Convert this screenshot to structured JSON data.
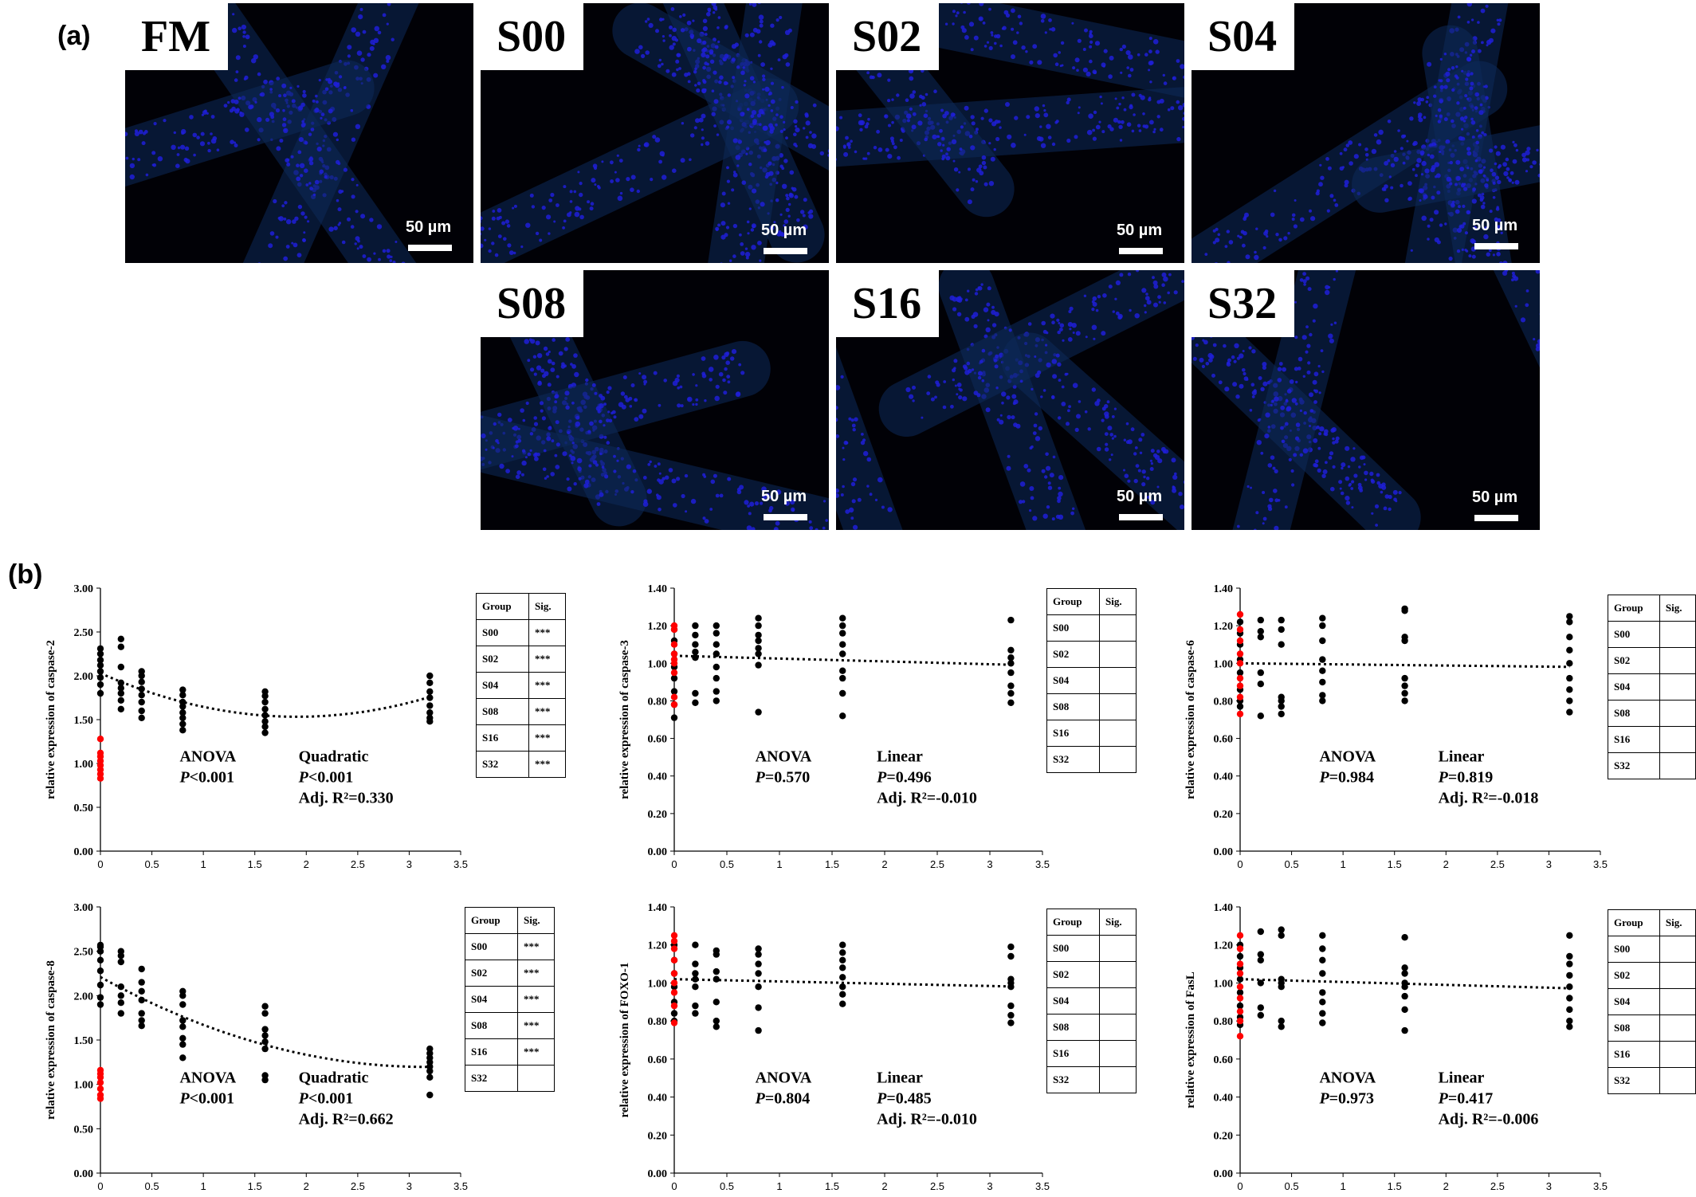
{
  "panel_a_label": "(a)",
  "panel_b_label": "(b)",
  "micrographs": [
    {
      "group": "FM",
      "scale": "50 µm"
    },
    {
      "group": "S00",
      "scale": "50 µm"
    },
    {
      "group": "S02",
      "scale": "50 µm"
    },
    {
      "group": "S04",
      "scale": "50 µm"
    },
    {
      "group": "S08",
      "scale": "50 µm"
    },
    {
      "group": "S16",
      "scale": "50 µm"
    },
    {
      "group": "S32",
      "scale": "50 µm"
    }
  ],
  "colors": {
    "nuclei": "#1f1fd8",
    "tissue_glow": "#0d2a5a",
    "background": "#010106",
    "fit": "#000000",
    "control": "#ff0000",
    "points": "#000000"
  },
  "chart_data": [
    {
      "type": "scatter",
      "ylabel": "relative expression of caspase-2",
      "xlim": [
        0,
        3.5
      ],
      "ylim": [
        0,
        3.0
      ],
      "xticks": [
        "0",
        "0.5",
        "1",
        "1.5",
        "2",
        "2.5",
        "3",
        "3.5"
      ],
      "yticks": [
        "0.00",
        "0.50",
        "1.00",
        "1.50",
        "2.00",
        "2.50",
        "3.00"
      ],
      "control": {
        "x": 0,
        "y": [
          0.83,
          0.88,
          0.93,
          0.98,
          1.03,
          1.08,
          1.12,
          1.28
        ]
      },
      "groups": [
        {
          "x": 0,
          "y": [
            1.8,
            1.9,
            1.98,
            2.05,
            2.12,
            2.18,
            2.25,
            2.31
          ]
        },
        {
          "x": 0.2,
          "y": [
            1.62,
            1.72,
            1.8,
            1.86,
            1.92,
            2.1,
            2.33,
            2.42
          ]
        },
        {
          "x": 0.4,
          "y": [
            1.52,
            1.6,
            1.7,
            1.78,
            1.85,
            1.93,
            2.0,
            2.05
          ]
        },
        {
          "x": 0.8,
          "y": [
            1.38,
            1.45,
            1.52,
            1.58,
            1.65,
            1.7,
            1.78,
            1.84
          ]
        },
        {
          "x": 1.6,
          "y": [
            1.35,
            1.42,
            1.48,
            1.55,
            1.62,
            1.7,
            1.77,
            1.82
          ]
        },
        {
          "x": 3.2,
          "y": [
            1.48,
            1.52,
            1.58,
            1.66,
            1.75,
            1.82,
            1.92,
            2.0
          ]
        }
      ],
      "fit": {
        "kind": "quadratic",
        "coeffs": [
          2.03,
          -0.52,
          0.136
        ]
      },
      "stats": {
        "anova_label": "ANOVA",
        "anova_p": "P<0.001",
        "model": "Quadratic",
        "model_p": "P<0.001",
        "adj_r2": "Adj. R²=0.330"
      },
      "table": {
        "headers": [
          "Group",
          "Sig."
        ],
        "rows": [
          [
            "S00",
            "***"
          ],
          [
            "S02",
            "***"
          ],
          [
            "S04",
            "***"
          ],
          [
            "S08",
            "***"
          ],
          [
            "S16",
            "***"
          ],
          [
            "S32",
            "***"
          ]
        ]
      }
    },
    {
      "type": "scatter",
      "ylabel": "relative expression of caspase-3",
      "xlim": [
        0,
        3.5
      ],
      "ylim": [
        0,
        1.4
      ],
      "xticks": [
        "0",
        "0.5",
        "1",
        "1.5",
        "2",
        "2.5",
        "3",
        "3.5"
      ],
      "yticks": [
        "0.00",
        "0.20",
        "0.40",
        "0.60",
        "0.80",
        "1.00",
        "1.20",
        "1.40"
      ],
      "control": {
        "x": 0,
        "y": [
          0.78,
          0.82,
          0.95,
          1.0,
          1.02,
          1.05,
          1.1,
          1.18,
          1.2
        ]
      },
      "groups": [
        {
          "x": 0,
          "y": [
            0.71,
            0.78,
            0.85,
            0.92,
            0.98,
            1.05,
            1.12,
            1.18
          ]
        },
        {
          "x": 0.2,
          "y": [
            0.79,
            0.84,
            1.03,
            1.06,
            1.1,
            1.15,
            1.2
          ]
        },
        {
          "x": 0.4,
          "y": [
            0.8,
            0.85,
            0.92,
            0.98,
            1.05,
            1.1,
            1.16,
            1.2
          ]
        },
        {
          "x": 0.8,
          "y": [
            0.74,
            0.99,
            1.05,
            1.08,
            1.12,
            1.15,
            1.2,
            1.24
          ]
        },
        {
          "x": 1.6,
          "y": [
            0.72,
            0.84,
            0.92,
            0.96,
            1.05,
            1.1,
            1.16,
            1.2,
            1.24
          ]
        },
        {
          "x": 3.2,
          "y": [
            0.79,
            0.84,
            0.88,
            0.95,
            1.0,
            1.03,
            1.07,
            1.23
          ]
        }
      ],
      "fit": {
        "kind": "linear",
        "coeffs": [
          1.04,
          -0.015
        ]
      },
      "stats": {
        "anova_label": "ANOVA",
        "anova_p": "P=0.570",
        "model": "Linear",
        "model_p": "P=0.496",
        "adj_r2": "Adj. R²=-0.010"
      },
      "table": {
        "headers": [
          "Group",
          "Sig."
        ],
        "rows": [
          [
            "S00",
            ""
          ],
          [
            "S02",
            ""
          ],
          [
            "S04",
            ""
          ],
          [
            "S08",
            ""
          ],
          [
            "S16",
            ""
          ],
          [
            "S32",
            ""
          ]
        ]
      }
    },
    {
      "type": "scatter",
      "ylabel": "relative expression of caspase-6",
      "xlim": [
        0,
        3.5
      ],
      "ylim": [
        0,
        1.4
      ],
      "xticks": [
        "0",
        "0.5",
        "1",
        "1.5",
        "2",
        "2.5",
        "3",
        "3.5"
      ],
      "yticks": [
        "0.00",
        "0.20",
        "0.40",
        "0.60",
        "0.80",
        "1.00",
        "1.20",
        "1.40"
      ],
      "control": {
        "x": 0,
        "y": [
          0.73,
          0.82,
          0.88,
          0.92,
          1.0,
          1.05,
          1.12,
          1.18,
          1.26
        ]
      },
      "groups": [
        {
          "x": 0,
          "y": [
            0.77,
            0.8,
            0.86,
            0.95,
            1.02,
            1.1,
            1.16,
            1.22
          ]
        },
        {
          "x": 0.2,
          "y": [
            0.72,
            0.89,
            0.95,
            1.14,
            1.17,
            1.23
          ]
        },
        {
          "x": 0.4,
          "y": [
            0.73,
            0.77,
            0.8,
            0.82,
            1.1,
            1.18,
            1.23
          ]
        },
        {
          "x": 0.8,
          "y": [
            0.8,
            0.83,
            0.9,
            0.96,
            1.02,
            1.12,
            1.2,
            1.24
          ]
        },
        {
          "x": 1.6,
          "y": [
            0.8,
            0.84,
            0.88,
            0.92,
            1.12,
            1.14,
            1.28,
            1.29
          ]
        },
        {
          "x": 3.2,
          "y": [
            0.74,
            0.8,
            0.86,
            0.92,
            1.0,
            1.07,
            1.14,
            1.22,
            1.25
          ]
        }
      ],
      "fit": {
        "kind": "linear",
        "coeffs": [
          1.0,
          -0.006
        ]
      },
      "stats": {
        "anova_label": "ANOVA",
        "anova_p": "P=0.984",
        "model": "Linear",
        "model_p": "P=0.819",
        "adj_r2": "Adj. R²=-0.018"
      },
      "table": {
        "headers": [
          "Group",
          "Sig."
        ],
        "rows": [
          [
            "S00",
            ""
          ],
          [
            "S02",
            ""
          ],
          [
            "S04",
            ""
          ],
          [
            "S08",
            ""
          ],
          [
            "S16",
            ""
          ],
          [
            "S32",
            ""
          ]
        ]
      }
    },
    {
      "type": "scatter",
      "ylabel": "relative expression of caspase-8",
      "xlim": [
        0,
        3.5
      ],
      "ylim": [
        0,
        3.0
      ],
      "xticks": [
        "0",
        "0.5",
        "1",
        "1.5",
        "2",
        "2.5",
        "3",
        "3.5"
      ],
      "yticks": [
        "0.00",
        "0.50",
        "1.00",
        "1.50",
        "2.00",
        "2.50",
        "3.00"
      ],
      "control": {
        "x": 0,
        "y": [
          0.84,
          0.88,
          0.95,
          1.02,
          1.08,
          1.12,
          1.16
        ]
      },
      "groups": [
        {
          "x": 0,
          "y": [
            1.9,
            1.98,
            2.12,
            2.28,
            2.4,
            2.5,
            2.55,
            2.57
          ]
        },
        {
          "x": 0.2,
          "y": [
            1.8,
            1.92,
            2.0,
            2.1,
            2.38,
            2.45,
            2.5
          ]
        },
        {
          "x": 0.4,
          "y": [
            1.66,
            1.72,
            1.8,
            1.95,
            2.05,
            2.15,
            2.3
          ]
        },
        {
          "x": 0.8,
          "y": [
            1.3,
            1.45,
            1.52,
            1.65,
            1.72,
            1.9,
            2.0,
            2.05
          ]
        },
        {
          "x": 1.6,
          "y": [
            1.05,
            1.1,
            1.4,
            1.48,
            1.55,
            1.62,
            1.8,
            1.88
          ]
        },
        {
          "x": 3.2,
          "y": [
            0.88,
            1.08,
            1.15,
            1.2,
            1.25,
            1.3,
            1.35,
            1.4
          ]
        }
      ],
      "fit": {
        "kind": "quadratic",
        "coeffs": [
          2.21,
          -0.64,
          0.101
        ]
      },
      "stats": {
        "anova_label": "ANOVA",
        "anova_p": "P<0.001",
        "model": "Quadratic",
        "model_p": "P<0.001",
        "adj_r2": "Adj. R²=0.662"
      },
      "table": {
        "headers": [
          "Group",
          "Sig."
        ],
        "rows": [
          [
            "S00",
            "***"
          ],
          [
            "S02",
            "***"
          ],
          [
            "S04",
            "***"
          ],
          [
            "S08",
            "***"
          ],
          [
            "S16",
            "***"
          ],
          [
            "S32",
            ""
          ]
        ]
      }
    },
    {
      "type": "scatter",
      "ylabel": "relative expression of FOXO-1",
      "xlim": [
        0,
        3.5
      ],
      "ylim": [
        0,
        1.4
      ],
      "xticks": [
        "0",
        "0.5",
        "1",
        "1.5",
        "2",
        "2.5",
        "3",
        "3.5"
      ],
      "yticks": [
        "0.00",
        "0.20",
        "0.40",
        "0.60",
        "0.80",
        "1.00",
        "1.20",
        "1.40"
      ],
      "control": {
        "x": 0,
        "y": [
          0.79,
          0.88,
          0.95,
          1.0,
          1.05,
          1.12,
          1.18,
          1.22,
          1.25
        ]
      },
      "groups": [
        {
          "x": 0,
          "y": [
            0.8,
            0.84,
            0.9,
            0.98,
            1.05,
            1.12,
            1.2
          ]
        },
        {
          "x": 0.2,
          "y": [
            0.84,
            0.88,
            0.98,
            1.02,
            1.05,
            1.1,
            1.2
          ]
        },
        {
          "x": 0.4,
          "y": [
            0.77,
            0.8,
            0.9,
            1.02,
            1.06,
            1.15,
            1.17
          ]
        },
        {
          "x": 0.8,
          "y": [
            0.75,
            0.87,
            0.98,
            1.05,
            1.1,
            1.15,
            1.18
          ]
        },
        {
          "x": 1.6,
          "y": [
            0.89,
            0.94,
            0.98,
            1.03,
            1.08,
            1.12,
            1.16,
            1.2
          ]
        },
        {
          "x": 3.2,
          "y": [
            0.79,
            0.83,
            0.88,
            0.98,
            1.0,
            1.02,
            1.14,
            1.19
          ]
        }
      ],
      "fit": {
        "kind": "linear",
        "coeffs": [
          1.02,
          -0.012
        ]
      },
      "stats": {
        "anova_label": "ANOVA",
        "anova_p": "P=0.804",
        "model": "Linear",
        "model_p": "P=0.485",
        "adj_r2": "Adj. R²=-0.010"
      },
      "table": {
        "headers": [
          "Group",
          "Sig."
        ],
        "rows": [
          [
            "S00",
            ""
          ],
          [
            "S02",
            ""
          ],
          [
            "S04",
            ""
          ],
          [
            "S08",
            ""
          ],
          [
            "S16",
            ""
          ],
          [
            "S32",
            ""
          ]
        ]
      }
    },
    {
      "type": "scatter",
      "ylabel": "relative expression of FasL",
      "xlim": [
        0,
        3.5
      ],
      "ylim": [
        0,
        1.4
      ],
      "xticks": [
        "0",
        "0.5",
        "1",
        "1.5",
        "2",
        "2.5",
        "3",
        "3.5"
      ],
      "yticks": [
        "0.00",
        "0.20",
        "0.40",
        "0.60",
        "0.80",
        "1.00",
        "1.20",
        "1.40"
      ],
      "control": {
        "x": 0,
        "y": [
          0.72,
          0.8,
          0.85,
          0.92,
          0.98,
          1.05,
          1.1,
          1.18,
          1.25
        ]
      },
      "groups": [
        {
          "x": 0,
          "y": [
            0.78,
            0.82,
            0.88,
            0.95,
            1.02,
            1.08,
            1.14,
            1.2
          ]
        },
        {
          "x": 0.2,
          "y": [
            0.83,
            0.87,
            1.0,
            1.12,
            1.15,
            1.27
          ]
        },
        {
          "x": 0.4,
          "y": [
            0.77,
            0.8,
            0.98,
            1.0,
            1.02,
            1.25,
            1.28
          ]
        },
        {
          "x": 0.8,
          "y": [
            0.79,
            0.84,
            0.9,
            0.95,
            1.05,
            1.12,
            1.18,
            1.25
          ]
        },
        {
          "x": 1.6,
          "y": [
            0.75,
            0.86,
            0.93,
            0.98,
            1.0,
            1.05,
            1.08,
            1.24
          ]
        },
        {
          "x": 3.2,
          "y": [
            0.77,
            0.8,
            0.86,
            0.92,
            0.98,
            1.04,
            1.1,
            1.14,
            1.25
          ]
        }
      ],
      "fit": {
        "kind": "linear",
        "coeffs": [
          1.02,
          -0.015
        ]
      },
      "stats": {
        "anova_label": "ANOVA",
        "anova_p": "P=0.973",
        "model": "Linear",
        "model_p": "P=0.417",
        "adj_r2": "Adj. R²=-0.006"
      },
      "table": {
        "headers": [
          "Group",
          "Sig."
        ],
        "rows": [
          [
            "S00",
            ""
          ],
          [
            "S02",
            ""
          ],
          [
            "S04",
            ""
          ],
          [
            "S08",
            ""
          ],
          [
            "S16",
            ""
          ],
          [
            "S32",
            ""
          ]
        ]
      }
    }
  ]
}
